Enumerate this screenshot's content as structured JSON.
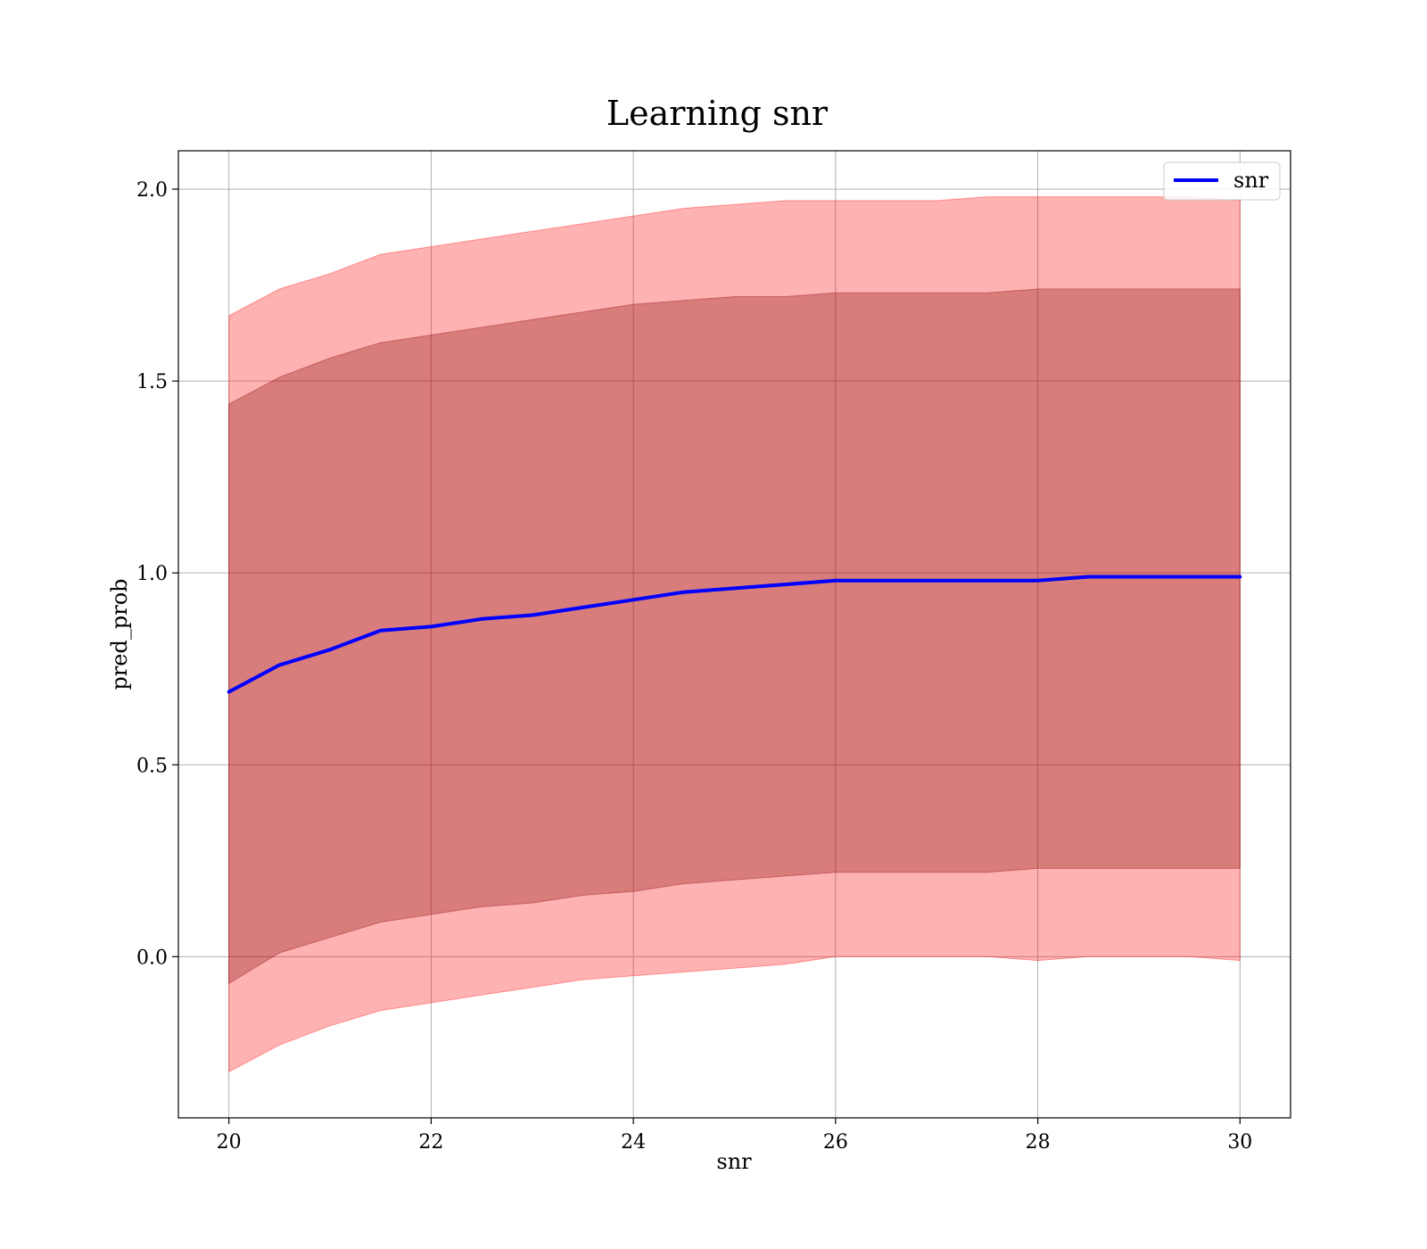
{
  "chart_data": {
    "type": "line",
    "title": "Learning snr",
    "xlabel": "snr",
    "ylabel": "pred_prob",
    "xlim": [
      19.5,
      30.5
    ],
    "ylim": [
      -0.42,
      2.1
    ],
    "xticks": [
      20,
      22,
      24,
      26,
      28,
      30
    ],
    "xtick_labels": [
      "20",
      "22",
      "24",
      "26",
      "28",
      "30"
    ],
    "yticks": [
      0.0,
      0.5,
      1.0,
      1.5,
      2.0
    ],
    "ytick_labels": [
      "0.0",
      "0.5",
      "1.0",
      "1.5",
      "2.0"
    ],
    "grid": true,
    "legend": {
      "placement": "top-right",
      "entries": [
        "snr"
      ]
    },
    "colors": {
      "line": "#0000ff",
      "outer_band": "#ff0000",
      "inner_band": "#800000",
      "grid": "#b0b0b0"
    },
    "x": [
      20,
      20.5,
      21,
      21.5,
      22,
      22.5,
      23,
      23.5,
      24,
      24.5,
      25,
      25.5,
      26,
      26.5,
      27,
      27.5,
      28,
      28.5,
      29,
      29.5,
      30
    ],
    "series": [
      {
        "name": "snr",
        "values": [
          0.69,
          0.76,
          0.8,
          0.85,
          0.86,
          0.88,
          0.89,
          0.91,
          0.93,
          0.95,
          0.96,
          0.97,
          0.98,
          0.98,
          0.98,
          0.98,
          0.98,
          0.99,
          0.99,
          0.99,
          0.99
        ]
      }
    ],
    "bands": [
      {
        "upper": [
          1.67,
          1.74,
          1.78,
          1.83,
          1.85,
          1.87,
          1.89,
          1.91,
          1.93,
          1.95,
          1.96,
          1.97,
          1.97,
          1.97,
          1.97,
          1.98,
          1.98,
          1.98,
          1.98,
          1.98,
          1.97
        ],
        "lower": [
          -0.3,
          -0.23,
          -0.18,
          -0.14,
          -0.12,
          -0.1,
          -0.08,
          -0.06,
          -0.05,
          -0.04,
          -0.03,
          -0.02,
          0.0,
          0.0,
          0.0,
          0.0,
          -0.01,
          0.0,
          0.0,
          0.0,
          -0.01
        ]
      },
      {
        "upper": [
          1.44,
          1.51,
          1.56,
          1.6,
          1.62,
          1.64,
          1.66,
          1.68,
          1.7,
          1.71,
          1.72,
          1.72,
          1.73,
          1.73,
          1.73,
          1.73,
          1.74,
          1.74,
          1.74,
          1.74,
          1.74
        ],
        "lower": [
          -0.07,
          0.01,
          0.05,
          0.09,
          0.11,
          0.13,
          0.14,
          0.16,
          0.17,
          0.19,
          0.2,
          0.21,
          0.22,
          0.22,
          0.22,
          0.22,
          0.23,
          0.23,
          0.23,
          0.23,
          0.23
        ]
      }
    ]
  }
}
